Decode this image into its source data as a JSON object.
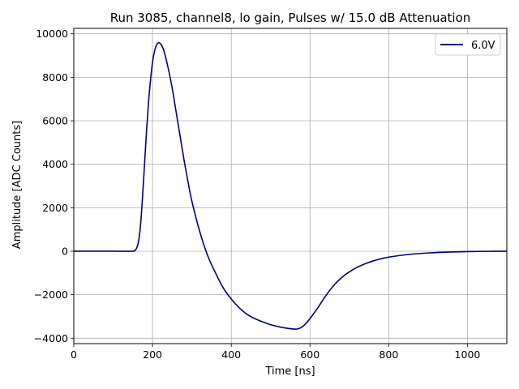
{
  "chart_data": {
    "type": "line",
    "title": "Run 3085, channel8, lo gain, Pulses w/ 15.0 dB Attenuation",
    "xlabel": "Time [ns]",
    "ylabel": "Amplitude [ADC Counts]",
    "xlim": [
      0,
      1100
    ],
    "ylim": [
      -4250,
      10250
    ],
    "xticks": [
      0,
      200,
      400,
      600,
      800,
      1000
    ],
    "xtick_labels": [
      "0",
      "200",
      "400",
      "600",
      "800",
      "1000"
    ],
    "yticks": [
      -4000,
      -2000,
      0,
      2000,
      4000,
      6000,
      8000,
      10000
    ],
    "ytick_labels": [
      "−4000",
      "−2000",
      "0",
      "2000",
      "4000",
      "6000",
      "8000",
      "10000"
    ],
    "grid": true,
    "legend_position": "top-right",
    "series": [
      {
        "name": "6.0V",
        "color": "#000080",
        "x": [
          0,
          100,
          150,
          155,
          160,
          165,
          170,
          175,
          180,
          185,
          190,
          195,
          200,
          205,
          210,
          215,
          220,
          225,
          230,
          240,
          250,
          260,
          270,
          280,
          290,
          300,
          320,
          340,
          360,
          380,
          400,
          420,
          440,
          460,
          480,
          500,
          520,
          540,
          560,
          570,
          580,
          590,
          600,
          620,
          640,
          660,
          680,
          700,
          720,
          740,
          760,
          780,
          800,
          850,
          900,
          950,
          1000,
          1050,
          1100
        ],
        "y": [
          0,
          0,
          0,
          40,
          150,
          500,
          1300,
          2600,
          4100,
          5600,
          6900,
          7900,
          8700,
          9200,
          9480,
          9580,
          9550,
          9400,
          9150,
          8400,
          7500,
          6400,
          5300,
          4200,
          3200,
          2300,
          900,
          -200,
          -1000,
          -1700,
          -2200,
          -2600,
          -2900,
          -3100,
          -3250,
          -3380,
          -3470,
          -3540,
          -3580,
          -3570,
          -3480,
          -3320,
          -3100,
          -2600,
          -2050,
          -1580,
          -1220,
          -950,
          -740,
          -580,
          -450,
          -350,
          -270,
          -150,
          -80,
          -40,
          -15,
          -5,
          0
        ]
      }
    ]
  }
}
